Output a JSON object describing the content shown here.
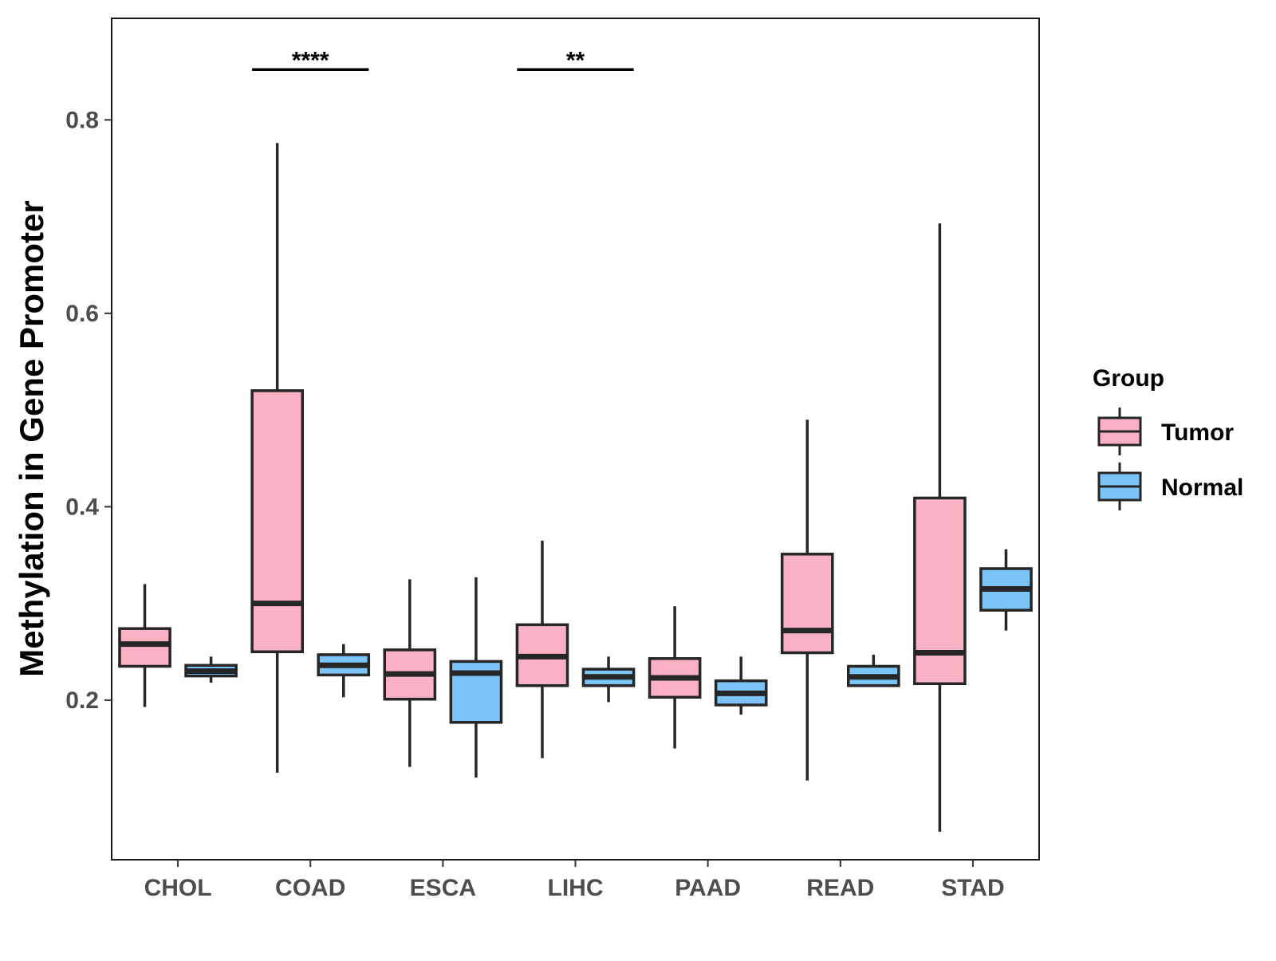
{
  "chart_data": {
    "type": "boxplot",
    "title": "",
    "xlabel": "",
    "ylabel": "Methylation in Gene Promoter",
    "ylim": [
      0.035,
      0.905
    ],
    "yticks": [
      "0.2",
      "0.4",
      "0.6",
      "0.8"
    ],
    "categories": [
      "CHOL",
      "COAD",
      "ESCA",
      "LIHC",
      "PAAD",
      "READ",
      "STAD"
    ],
    "legend": {
      "title": "Group",
      "position": "right",
      "entries": [
        "Tumor",
        "Normal"
      ]
    },
    "series": [
      {
        "name": "Tumor",
        "color": "#fab1c4",
        "boxes": [
          {
            "min": 0.193,
            "q1": 0.235,
            "median": 0.258,
            "q3": 0.274,
            "max": 0.32
          },
          {
            "min": 0.125,
            "q1": 0.25,
            "median": 0.3,
            "q3": 0.52,
            "max": 0.776
          },
          {
            "min": 0.131,
            "q1": 0.201,
            "median": 0.227,
            "q3": 0.252,
            "max": 0.325
          },
          {
            "min": 0.14,
            "q1": 0.215,
            "median": 0.245,
            "q3": 0.278,
            "max": 0.365
          },
          {
            "min": 0.15,
            "q1": 0.203,
            "median": 0.223,
            "q3": 0.243,
            "max": 0.297
          },
          {
            "min": 0.117,
            "q1": 0.249,
            "median": 0.272,
            "q3": 0.351,
            "max": 0.49
          },
          {
            "min": 0.064,
            "q1": 0.217,
            "median": 0.249,
            "q3": 0.409,
            "max": 0.693
          }
        ]
      },
      {
        "name": "Normal",
        "color": "#7cc4f7",
        "boxes": [
          {
            "min": 0.218,
            "q1": 0.225,
            "median": 0.23,
            "q3": 0.236,
            "max": 0.245
          },
          {
            "min": 0.203,
            "q1": 0.226,
            "median": 0.236,
            "q3": 0.247,
            "max": 0.258
          },
          {
            "min": 0.12,
            "q1": 0.177,
            "median": 0.228,
            "q3": 0.24,
            "max": 0.327
          },
          {
            "min": 0.198,
            "q1": 0.215,
            "median": 0.224,
            "q3": 0.232,
            "max": 0.245
          },
          {
            "min": 0.185,
            "q1": 0.195,
            "median": 0.207,
            "q3": 0.22,
            "max": 0.245
          },
          {
            "min": 0.214,
            "q1": 0.215,
            "median": 0.224,
            "q3": 0.235,
            "max": 0.247
          },
          {
            "min": 0.272,
            "q1": 0.293,
            "median": 0.315,
            "q3": 0.336,
            "max": 0.356
          }
        ]
      }
    ],
    "significance": [
      {
        "category": "COAD",
        "label": "****",
        "y": 0.852
      },
      {
        "category": "LIHC",
        "label": "**",
        "y": 0.852
      }
    ]
  }
}
